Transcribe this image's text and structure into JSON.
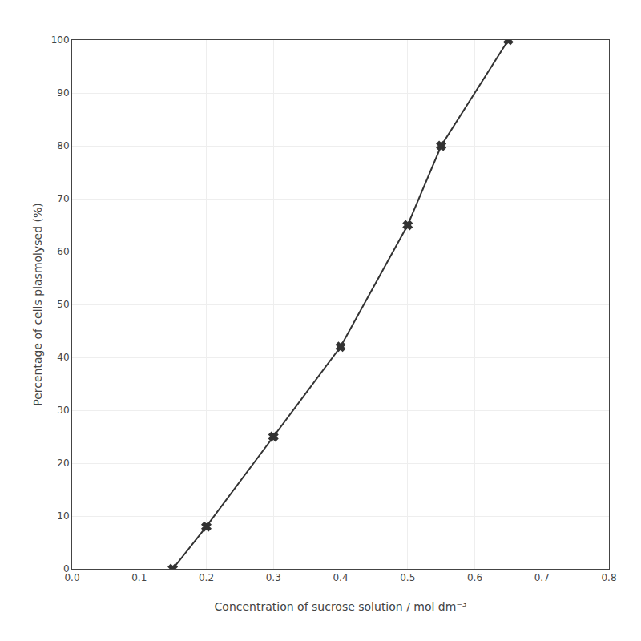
{
  "chart_data": {
    "type": "line",
    "xlabel": "Concentration of sucrose solution / mol dm⁻³",
    "ylabel": "Percentage of cells plasmolysed (%)",
    "x": [
      0.15,
      0.2,
      0.3,
      0.4,
      0.5,
      0.55,
      0.65
    ],
    "values": [
      0,
      8,
      25,
      42,
      65,
      80,
      100
    ],
    "color": "#333333",
    "marker": "x",
    "xlim": [
      0,
      0.8
    ],
    "ylim": [
      0,
      100
    ],
    "xticks": [
      {
        "value": 0,
        "label": "0.0"
      },
      0.1,
      0.2,
      0.3,
      0.4,
      0.5,
      0.6,
      0.7,
      0.8
    ],
    "yticks": [
      0,
      10,
      20,
      30,
      40,
      50,
      60,
      70,
      80,
      90,
      100
    ],
    "grid": true
  }
}
